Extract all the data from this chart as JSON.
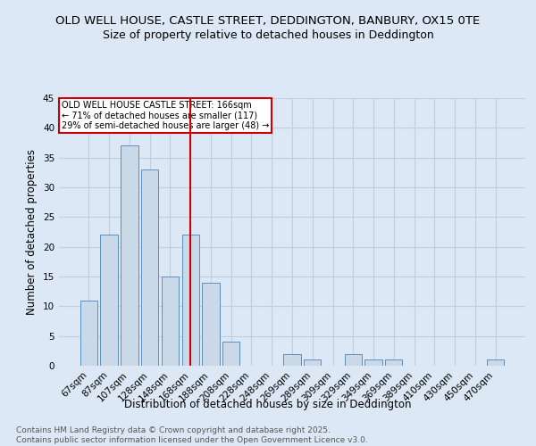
{
  "title1": "OLD WELL HOUSE, CASTLE STREET, DEDDINGTON, BANBURY, OX15 0TE",
  "title2": "Size of property relative to detached houses in Deddington",
  "xlabel": "Distribution of detached houses by size in Deddington",
  "ylabel": "Number of detached properties",
  "bar_labels": [
    "67sqm",
    "87sqm",
    "107sqm",
    "128sqm",
    "148sqm",
    "168sqm",
    "188sqm",
    "208sqm",
    "228sqm",
    "248sqm",
    "269sqm",
    "289sqm",
    "309sqm",
    "329sqm",
    "349sqm",
    "369sqm",
    "389sqm",
    "410sqm",
    "430sqm",
    "450sqm",
    "470sqm"
  ],
  "bar_values": [
    11,
    22,
    37,
    33,
    15,
    22,
    14,
    4,
    0,
    0,
    2,
    1,
    0,
    2,
    1,
    1,
    0,
    0,
    0,
    0,
    1
  ],
  "bar_color": "#c9d9e8",
  "bar_edge_color": "#5a8fc0",
  "reference_line_x": 5,
  "annotation_text": "OLD WELL HOUSE CASTLE STREET: 166sqm\n← 71% of detached houses are smaller (117)\n29% of semi-detached houses are larger (48) →",
  "annotation_box_color": "#ffffff",
  "annotation_box_edge_color": "#cc0000",
  "ylim": [
    0,
    45
  ],
  "yticks": [
    0,
    5,
    10,
    15,
    20,
    25,
    30,
    35,
    40,
    45
  ],
  "grid_color": "#c0cfe0",
  "bg_color": "#dce8f5",
  "footer_text": "Contains HM Land Registry data © Crown copyright and database right 2025.\nContains public sector information licensed under the Open Government Licence v3.0.",
  "title1_fontsize": 9.5,
  "title2_fontsize": 9,
  "axis_label_fontsize": 8.5,
  "tick_fontsize": 7.5,
  "footer_fontsize": 6.5
}
